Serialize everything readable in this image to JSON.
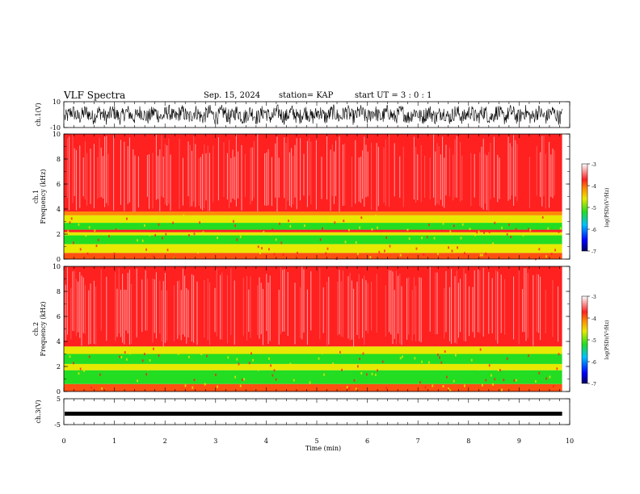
{
  "header": {
    "title": "VLF Spectra",
    "date": "Sep. 15, 2024",
    "station": "station= KAP",
    "start": "start UT = 3 : 0 : 1"
  },
  "chart_data": [
    {
      "type": "line",
      "panel": "ch1-waveform",
      "ylabel": "ch.1(V)",
      "ylim": [
        -10,
        10
      ],
      "yticks": [
        "10",
        "-10"
      ],
      "xlim": [
        0,
        10
      ],
      "signal": "noisy broadband waveform, amplitude about ±6 V"
    },
    {
      "type": "heatmap",
      "panel": "ch1-spectrogram",
      "ylabel": "ch.1 Frequency (kHz)",
      "ylim": [
        0,
        10
      ],
      "yticks": [
        "0",
        "2",
        "4",
        "6",
        "8",
        "10"
      ],
      "xlim": [
        0,
        9.85
      ],
      "bands": [
        {
          "from": 0,
          "to": 0.5,
          "level": "red-orange"
        },
        {
          "from": 0.5,
          "to": 1.2,
          "level": "yellow"
        },
        {
          "from": 1.2,
          "to": 1.9,
          "level": "green"
        },
        {
          "from": 1.9,
          "to": 2.15,
          "level": "yellow"
        },
        {
          "from": 2.15,
          "to": 2.35,
          "level": "red"
        },
        {
          "from": 2.35,
          "to": 2.9,
          "level": "green"
        },
        {
          "from": 2.9,
          "to": 3.5,
          "level": "yellow"
        },
        {
          "from": 3.5,
          "to": 3.8,
          "level": "orange"
        },
        {
          "from": 3.8,
          "to": 10,
          "level": "red"
        }
      ],
      "colorbar": {
        "label": "log(PSD)(V²/Hz)",
        "ticks": [
          "-3",
          "-4",
          "-5",
          "-6",
          "-7"
        ],
        "range": [
          -7,
          -3
        ]
      }
    },
    {
      "type": "heatmap",
      "panel": "ch2-spectrogram",
      "ylabel": "ch.2 Frequency (kHz)",
      "ylim": [
        0,
        10
      ],
      "yticks": [
        "0",
        "2",
        "4",
        "6",
        "8",
        "10"
      ],
      "xlim": [
        0,
        9.85
      ],
      "bands": [
        {
          "from": 0,
          "to": 0.6,
          "level": "red-orange"
        },
        {
          "from": 0.6,
          "to": 1.7,
          "level": "green"
        },
        {
          "from": 1.7,
          "to": 2.2,
          "level": "yellow"
        },
        {
          "from": 2.2,
          "to": 3.0,
          "level": "green"
        },
        {
          "from": 3.0,
          "to": 3.6,
          "level": "yellow"
        },
        {
          "from": 3.6,
          "to": 10,
          "level": "red"
        }
      ],
      "colorbar": {
        "label": "log(PSD)(V²/Hz)",
        "ticks": [
          "-3",
          "-4",
          "-5",
          "-6",
          "-7"
        ],
        "range": [
          -7,
          -3
        ]
      }
    },
    {
      "type": "line",
      "panel": "ch3-waveform",
      "ylabel": "ch.3(V)",
      "ylim": [
        -5,
        5
      ],
      "yticks": [
        "5",
        "-5"
      ],
      "xlim": [
        0,
        10
      ],
      "signal": "narrow band around -1 V"
    }
  ],
  "xaxis": {
    "label": "Time (min)",
    "ticks": [
      "0",
      "1",
      "2",
      "3",
      "4",
      "5",
      "6",
      "7",
      "8",
      "9",
      "10"
    ],
    "range": [
      0,
      10
    ]
  },
  "colors": {
    "red": "#ff2020",
    "orange": "#ff8a00",
    "yellow": "#e8e800",
    "green": "#22dd22",
    "blue": "#0000ff",
    "navy": "#000060"
  }
}
